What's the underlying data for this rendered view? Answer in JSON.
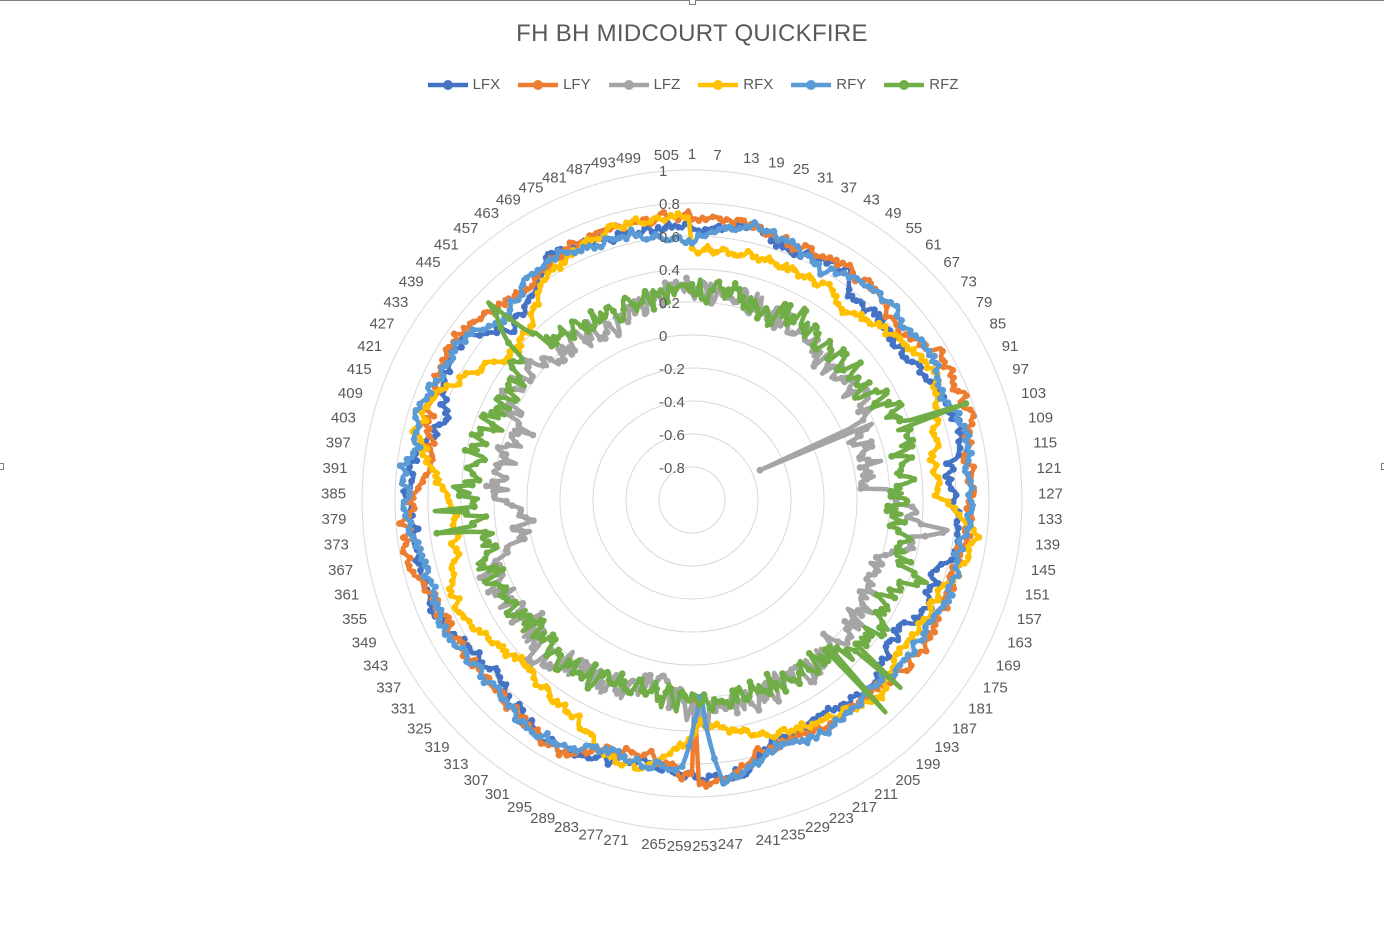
{
  "chart_data": {
    "type": "radar",
    "title": "FH BH MIDCOURT QUICKFIRE",
    "radial_range": [
      -1,
      1
    ],
    "radial_ticks": [
      "1",
      "0.8",
      "0.6",
      "0.4",
      "0.2",
      "0",
      "-0.2",
      "-0.4",
      "-0.6",
      "-0.8"
    ],
    "category_count": 510,
    "category_labels": [
      "1",
      "7",
      "13",
      "19",
      "25",
      "31",
      "37",
      "43",
      "49",
      "55",
      "61",
      "67",
      "73",
      "79",
      "85",
      "91",
      "97",
      "103",
      "109",
      "115",
      "121",
      "127",
      "133",
      "139",
      "145",
      "151",
      "157",
      "163",
      "169",
      "175",
      "181",
      "187",
      "193",
      "199",
      "205",
      "211",
      "217",
      "223",
      "229",
      "235",
      "241",
      "247",
      "253",
      "259",
      "265",
      "271",
      "277",
      "283",
      "289",
      "295",
      "301",
      "307",
      "313",
      "319",
      "325",
      "331",
      "337",
      "343",
      "349",
      "355",
      "361",
      "367",
      "373",
      "379",
      "385",
      "391",
      "397",
      "403",
      "409",
      "415",
      "421",
      "427",
      "433",
      "439",
      "445",
      "451",
      "457",
      "463",
      "469",
      "475",
      "481",
      "487",
      "493",
      "499",
      "505"
    ],
    "legend_position": "top",
    "grid": true,
    "series": [
      {
        "name": "LFX",
        "color": "#4472c4",
        "profile": [
          [
            1,
            0.62
          ],
          [
            19,
            0.7
          ],
          [
            31,
            0.62
          ],
          [
            49,
            0.68
          ],
          [
            55,
            0.56
          ],
          [
            67,
            0.58
          ],
          [
            79,
            0.55
          ],
          [
            91,
            0.62
          ],
          [
            109,
            0.68
          ],
          [
            121,
            0.55
          ],
          [
            133,
            0.62
          ],
          [
            145,
            0.65
          ],
          [
            151,
            0.53
          ],
          [
            163,
            0.57
          ],
          [
            175,
            0.47
          ],
          [
            181,
            0.49
          ],
          [
            193,
            0.56
          ],
          [
            211,
            0.53
          ],
          [
            229,
            0.53
          ],
          [
            241,
            0.68
          ],
          [
            247,
            0.7
          ],
          [
            253,
            0.7
          ],
          [
            259,
            0.66
          ],
          [
            271,
            0.62
          ],
          [
            283,
            0.65
          ],
          [
            295,
            0.72
          ],
          [
            313,
            0.65
          ],
          [
            325,
            0.58
          ],
          [
            337,
            0.63
          ],
          [
            349,
            0.7
          ],
          [
            361,
            0.7
          ],
          [
            373,
            0.68
          ],
          [
            385,
            0.73
          ],
          [
            397,
            0.7
          ],
          [
            409,
            0.56
          ],
          [
            421,
            0.68
          ],
          [
            433,
            0.7
          ],
          [
            445,
            0.5
          ],
          [
            457,
            0.58
          ],
          [
            469,
            0.72
          ],
          [
            481,
            0.68
          ],
          [
            493,
            0.66
          ],
          [
            505,
            0.66
          ]
        ]
      },
      {
        "name": "LFY",
        "color": "#ed7d31",
        "profile": [
          [
            1,
            0.71
          ],
          [
            19,
            0.7
          ],
          [
            31,
            0.66
          ],
          [
            49,
            0.69
          ],
          [
            61,
            0.68
          ],
          [
            73,
            0.6
          ],
          [
            85,
            0.74
          ],
          [
            97,
            0.74
          ],
          [
            103,
            0.76
          ],
          [
            115,
            0.69
          ],
          [
            127,
            0.7
          ],
          [
            139,
            0.68
          ],
          [
            151,
            0.64
          ],
          [
            163,
            0.65
          ],
          [
            175,
            0.66
          ],
          [
            187,
            0.62
          ],
          [
            199,
            0.58
          ],
          [
            211,
            0.6
          ],
          [
            223,
            0.56
          ],
          [
            235,
            0.58
          ],
          [
            247,
            0.72
          ],
          [
            253,
            0.72
          ],
          [
            259,
            0.66
          ],
          [
            271,
            0.55
          ],
          [
            283,
            0.6
          ],
          [
            295,
            0.72
          ],
          [
            307,
            0.68
          ],
          [
            319,
            0.65
          ],
          [
            331,
            0.66
          ],
          [
            343,
            0.66
          ],
          [
            355,
            0.68
          ],
          [
            367,
            0.76
          ],
          [
            379,
            0.74
          ],
          [
            391,
            0.62
          ],
          [
            397,
            0.6
          ],
          [
            409,
            0.68
          ],
          [
            421,
            0.72
          ],
          [
            433,
            0.74
          ],
          [
            445,
            0.67
          ],
          [
            457,
            0.62
          ],
          [
            469,
            0.69
          ],
          [
            481,
            0.71
          ],
          [
            493,
            0.72
          ],
          [
            505,
            0.72
          ]
        ]
      },
      {
        "name": "LFZ",
        "color": "#a5a5a5",
        "profile": [
          [
            1,
            0.26
          ],
          [
            19,
            0.28
          ],
          [
            31,
            0.22
          ],
          [
            49,
            0.22
          ],
          [
            61,
            0.14
          ],
          [
            73,
            0.16
          ],
          [
            85,
            0.22
          ],
          [
            97,
            0.1
          ],
          [
            103,
            0.08
          ],
          [
            115,
            0.1
          ],
          [
            121,
            0.04
          ],
          [
            127,
            0.2
          ],
          [
            133,
            0.3
          ],
          [
            139,
            0.45
          ],
          [
            145,
            0.32
          ],
          [
            151,
            0.2
          ],
          [
            163,
            0.18
          ],
          [
            175,
            0.22
          ],
          [
            187,
            0.26
          ],
          [
            193,
            0.2
          ],
          [
            205,
            0.28
          ],
          [
            217,
            0.22
          ],
          [
            229,
            0.26
          ],
          [
            241,
            0.28
          ],
          [
            253,
            0.3
          ],
          [
            259,
            0.26
          ],
          [
            271,
            0.1
          ],
          [
            283,
            0.22
          ],
          [
            295,
            0.24
          ],
          [
            307,
            0.22
          ],
          [
            319,
            0.34
          ],
          [
            331,
            0.22
          ],
          [
            343,
            0.26
          ],
          [
            355,
            0.3
          ],
          [
            367,
            0.08
          ],
          [
            379,
            0.0
          ],
          [
            385,
            0.2
          ],
          [
            391,
            0.18
          ],
          [
            403,
            0.16
          ],
          [
            415,
            0.12
          ],
          [
            427,
            0.28
          ],
          [
            439,
            0.26
          ],
          [
            451,
            0.18
          ],
          [
            463,
            0.2
          ],
          [
            475,
            0.15
          ],
          [
            487,
            0.22
          ],
          [
            499,
            0.28
          ],
          [
            505,
            0.3
          ]
        ]
      },
      {
        "name": "RFX",
        "color": "#ffc000",
        "profile": [
          [
            1,
            0.52
          ],
          [
            19,
            0.52
          ],
          [
            31,
            0.52
          ],
          [
            43,
            0.52
          ],
          [
            49,
            0.54
          ],
          [
            55,
            0.46
          ],
          [
            67,
            0.54
          ],
          [
            79,
            0.62
          ],
          [
            91,
            0.66
          ],
          [
            103,
            0.55
          ],
          [
            115,
            0.48
          ],
          [
            127,
            0.5
          ],
          [
            139,
            0.74
          ],
          [
            151,
            0.66
          ],
          [
            157,
            0.6
          ],
          [
            169,
            0.58
          ],
          [
            181,
            0.55
          ],
          [
            193,
            0.65
          ],
          [
            205,
            0.58
          ],
          [
            217,
            0.54
          ],
          [
            229,
            0.5
          ],
          [
            241,
            0.42
          ],
          [
            253,
            0.36
          ],
          [
            259,
            0.48
          ],
          [
            271,
            0.66
          ],
          [
            283,
            0.63
          ],
          [
            295,
            0.5
          ],
          [
            307,
            0.46
          ],
          [
            319,
            0.42
          ],
          [
            331,
            0.46
          ],
          [
            343,
            0.56
          ],
          [
            355,
            0.56
          ],
          [
            367,
            0.46
          ],
          [
            379,
            0.43
          ],
          [
            391,
            0.55
          ],
          [
            403,
            0.72
          ],
          [
            415,
            0.68
          ],
          [
            427,
            0.52
          ],
          [
            439,
            0.4
          ],
          [
            451,
            0.44
          ],
          [
            463,
            0.62
          ],
          [
            475,
            0.66
          ],
          [
            487,
            0.72
          ],
          [
            499,
            0.72
          ],
          [
            505,
            0.72
          ]
        ]
      },
      {
        "name": "RFY",
        "color": "#5b9bd5",
        "profile": [
          [
            1,
            0.58
          ],
          [
            19,
            0.7
          ],
          [
            31,
            0.66
          ],
          [
            43,
            0.6
          ],
          [
            49,
            0.65
          ],
          [
            61,
            0.7
          ],
          [
            73,
            0.66
          ],
          [
            85,
            0.7
          ],
          [
            97,
            0.64
          ],
          [
            109,
            0.72
          ],
          [
            121,
            0.68
          ],
          [
            133,
            0.7
          ],
          [
            145,
            0.64
          ],
          [
            157,
            0.66
          ],
          [
            169,
            0.62
          ],
          [
            181,
            0.62
          ],
          [
            193,
            0.58
          ],
          [
            205,
            0.6
          ],
          [
            217,
            0.62
          ],
          [
            229,
            0.58
          ],
          [
            241,
            0.68
          ],
          [
            247,
            0.72
          ],
          [
            253,
            0.2
          ],
          [
            259,
            0.62
          ],
          [
            271,
            0.63
          ],
          [
            283,
            0.6
          ],
          [
            295,
            0.68
          ],
          [
            307,
            0.7
          ],
          [
            319,
            0.66
          ],
          [
            331,
            0.65
          ],
          [
            343,
            0.7
          ],
          [
            355,
            0.66
          ],
          [
            367,
            0.68
          ],
          [
            379,
            0.74
          ],
          [
            385,
            0.72
          ],
          [
            391,
            0.76
          ],
          [
            397,
            0.7
          ],
          [
            409,
            0.74
          ],
          [
            421,
            0.7
          ],
          [
            433,
            0.7
          ],
          [
            445,
            0.58
          ],
          [
            457,
            0.65
          ],
          [
            469,
            0.7
          ],
          [
            481,
            0.65
          ],
          [
            493,
            0.65
          ],
          [
            505,
            0.58
          ]
        ]
      },
      {
        "name": "RFZ",
        "color": "#70ad47",
        "profile": [
          [
            1,
            0.28
          ],
          [
            19,
            0.26
          ],
          [
            31,
            0.2
          ],
          [
            43,
            0.28
          ],
          [
            55,
            0.22
          ],
          [
            67,
            0.24
          ],
          [
            79,
            0.24
          ],
          [
            85,
            0.26
          ],
          [
            91,
            0.3
          ],
          [
            97,
            0.34
          ],
          [
            103,
            0.36
          ],
          [
            109,
            0.32
          ],
          [
            115,
            0.32
          ],
          [
            121,
            0.28
          ],
          [
            127,
            0.26
          ],
          [
            133,
            0.24
          ],
          [
            139,
            0.28
          ],
          [
            145,
            0.28
          ],
          [
            151,
            0.32
          ],
          [
            157,
            0.46
          ],
          [
            163,
            0.34
          ],
          [
            169,
            0.3
          ],
          [
            175,
            0.38
          ],
          [
            181,
            0.36
          ],
          [
            187,
            0.34
          ],
          [
            193,
            0.28
          ],
          [
            205,
            0.24
          ],
          [
            217,
            0.26
          ],
          [
            229,
            0.2
          ],
          [
            241,
            0.22
          ],
          [
            253,
            0.22
          ],
          [
            259,
            0.2
          ],
          [
            271,
            0.2
          ],
          [
            283,
            0.18
          ],
          [
            295,
            0.22
          ],
          [
            307,
            0.26
          ],
          [
            319,
            0.22
          ],
          [
            331,
            0.24
          ],
          [
            343,
            0.3
          ],
          [
            355,
            0.3
          ],
          [
            367,
            0.26
          ],
          [
            379,
            0.34
          ],
          [
            385,
            0.38
          ],
          [
            391,
            0.36
          ],
          [
            397,
            0.32
          ],
          [
            409,
            0.32
          ],
          [
            421,
            0.28
          ],
          [
            433,
            0.3
          ],
          [
            439,
            0.34
          ],
          [
            445,
            0.66
          ],
          [
            451,
            0.3
          ],
          [
            463,
            0.24
          ],
          [
            475,
            0.24
          ],
          [
            487,
            0.22
          ],
          [
            499,
            0.28
          ],
          [
            505,
            0.28
          ]
        ]
      }
    ],
    "spikes": [
      {
        "series": "LFZ",
        "index": 95,
        "value": -0.55
      },
      {
        "series": "LFZ",
        "index": 138,
        "value": 0.56
      },
      {
        "series": "LFZ",
        "index": 226,
        "value": 0.2
      },
      {
        "series": "LFZ",
        "index": 368,
        "value": 0.0
      },
      {
        "series": "RFZ",
        "index": 101,
        "value": 0.76
      },
      {
        "series": "RFZ",
        "index": 188,
        "value": 0.7
      },
      {
        "series": "RFZ",
        "index": 196,
        "value": 0.74
      },
      {
        "series": "RFZ",
        "index": 373,
        "value": 0.56
      },
      {
        "series": "RFZ",
        "index": 380,
        "value": 0.56
      },
      {
        "series": "RFZ",
        "index": 446,
        "value": 0.72
      },
      {
        "series": "RFY",
        "index": 393,
        "value": 0.78
      },
      {
        "series": "RFY",
        "index": 252,
        "value": 0.2
      },
      {
        "series": "LFY",
        "index": 255,
        "value": 0.2
      },
      {
        "series": "LFY",
        "index": 391,
        "value": 0.62
      }
    ]
  }
}
